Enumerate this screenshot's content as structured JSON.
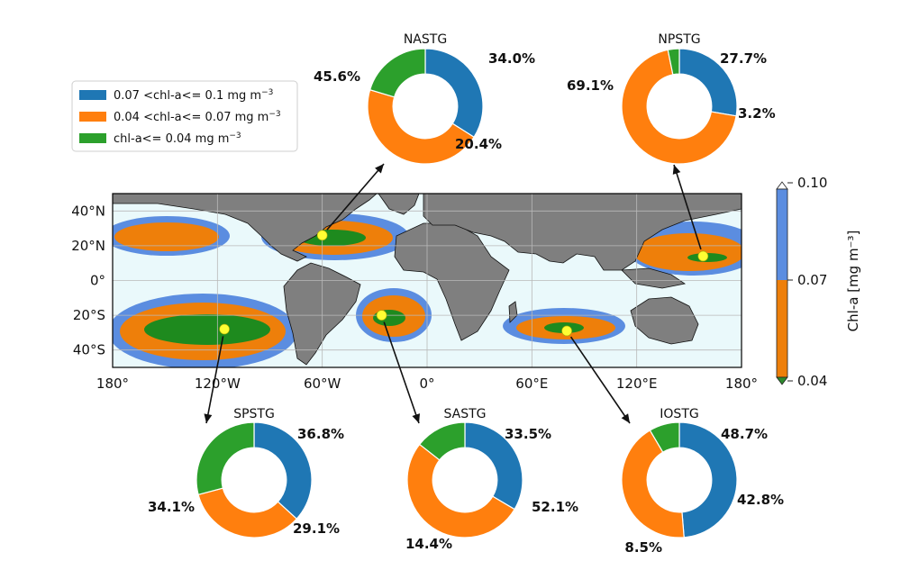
{
  "chart_data": {
    "type": "pie",
    "legend": {
      "placement": "top-left",
      "entries": [
        {
          "label_main": "0.07 <chl-a<= 0.1 mg m",
          "label_sup": "−3",
          "color": "#1f77b4"
        },
        {
          "label_main": "0.04 <chl-a<= 0.07 mg m",
          "label_sup": "−3",
          "color": "#ff7f0e"
        },
        {
          "label_main": "chl-a<= 0.04 mg m",
          "label_sup": "−3",
          "color": "#2ca02c"
        }
      ]
    },
    "slice_colors": [
      "#1f77b4",
      "#ff7f0e",
      "#2ca02c"
    ],
    "gyres": [
      {
        "name": "NASTG",
        "values": [
          34.0,
          45.6,
          20.4
        ],
        "labels": [
          "34.0%",
          "45.6%",
          "20.4%"
        ],
        "marker": {
          "lon": -60,
          "lat": 26
        }
      },
      {
        "name": "NPSTG",
        "values": [
          27.7,
          69.1,
          3.2
        ],
        "labels": [
          "27.7%",
          "69.1%",
          "3.2%"
        ],
        "marker": {
          "lon": 158,
          "lat": 14
        }
      },
      {
        "name": "SPSTG",
        "values": [
          36.8,
          34.1,
          29.1
        ],
        "labels": [
          "36.8%",
          "34.1%",
          "29.1%"
        ],
        "marker": {
          "lon": -116,
          "lat": -28
        }
      },
      {
        "name": "SASTG",
        "values": [
          33.5,
          52.1,
          14.4
        ],
        "labels": [
          "33.5%",
          "52.1%",
          "14.4%"
        ],
        "marker": {
          "lon": -26,
          "lat": -20
        }
      },
      {
        "name": "IOSTG",
        "values": [
          48.7,
          42.8,
          8.5
        ],
        "labels": [
          "48.7%",
          "42.8%",
          "8.5%"
        ],
        "marker": {
          "lon": 80,
          "lat": -29
        }
      }
    ],
    "map": {
      "x_ticks": [
        "180°",
        "120°W",
        "60°W",
        "0°",
        "60°E",
        "120°E",
        "180°"
      ],
      "x_tick_values": [
        -180,
        -120,
        -60,
        0,
        60,
        120,
        180
      ],
      "y_ticks": [
        "40°N",
        "20°N",
        "0°",
        "20°S",
        "40°S"
      ],
      "y_tick_values": [
        40,
        20,
        0,
        -20,
        -40
      ],
      "xlim": [
        -180,
        180
      ],
      "ylim": [
        -50,
        50
      ],
      "grid": true
    },
    "colorbar": {
      "label": "Chl-a [mg m⁻³]",
      "ticks": [
        "0.10",
        "0.07",
        "0.04"
      ],
      "tick_values": [
        0.1,
        0.07,
        0.04
      ],
      "colors": {
        "upper": "#5b8de0",
        "lower": "#ee7f0a",
        "under": "#2e8b2e"
      }
    }
  }
}
